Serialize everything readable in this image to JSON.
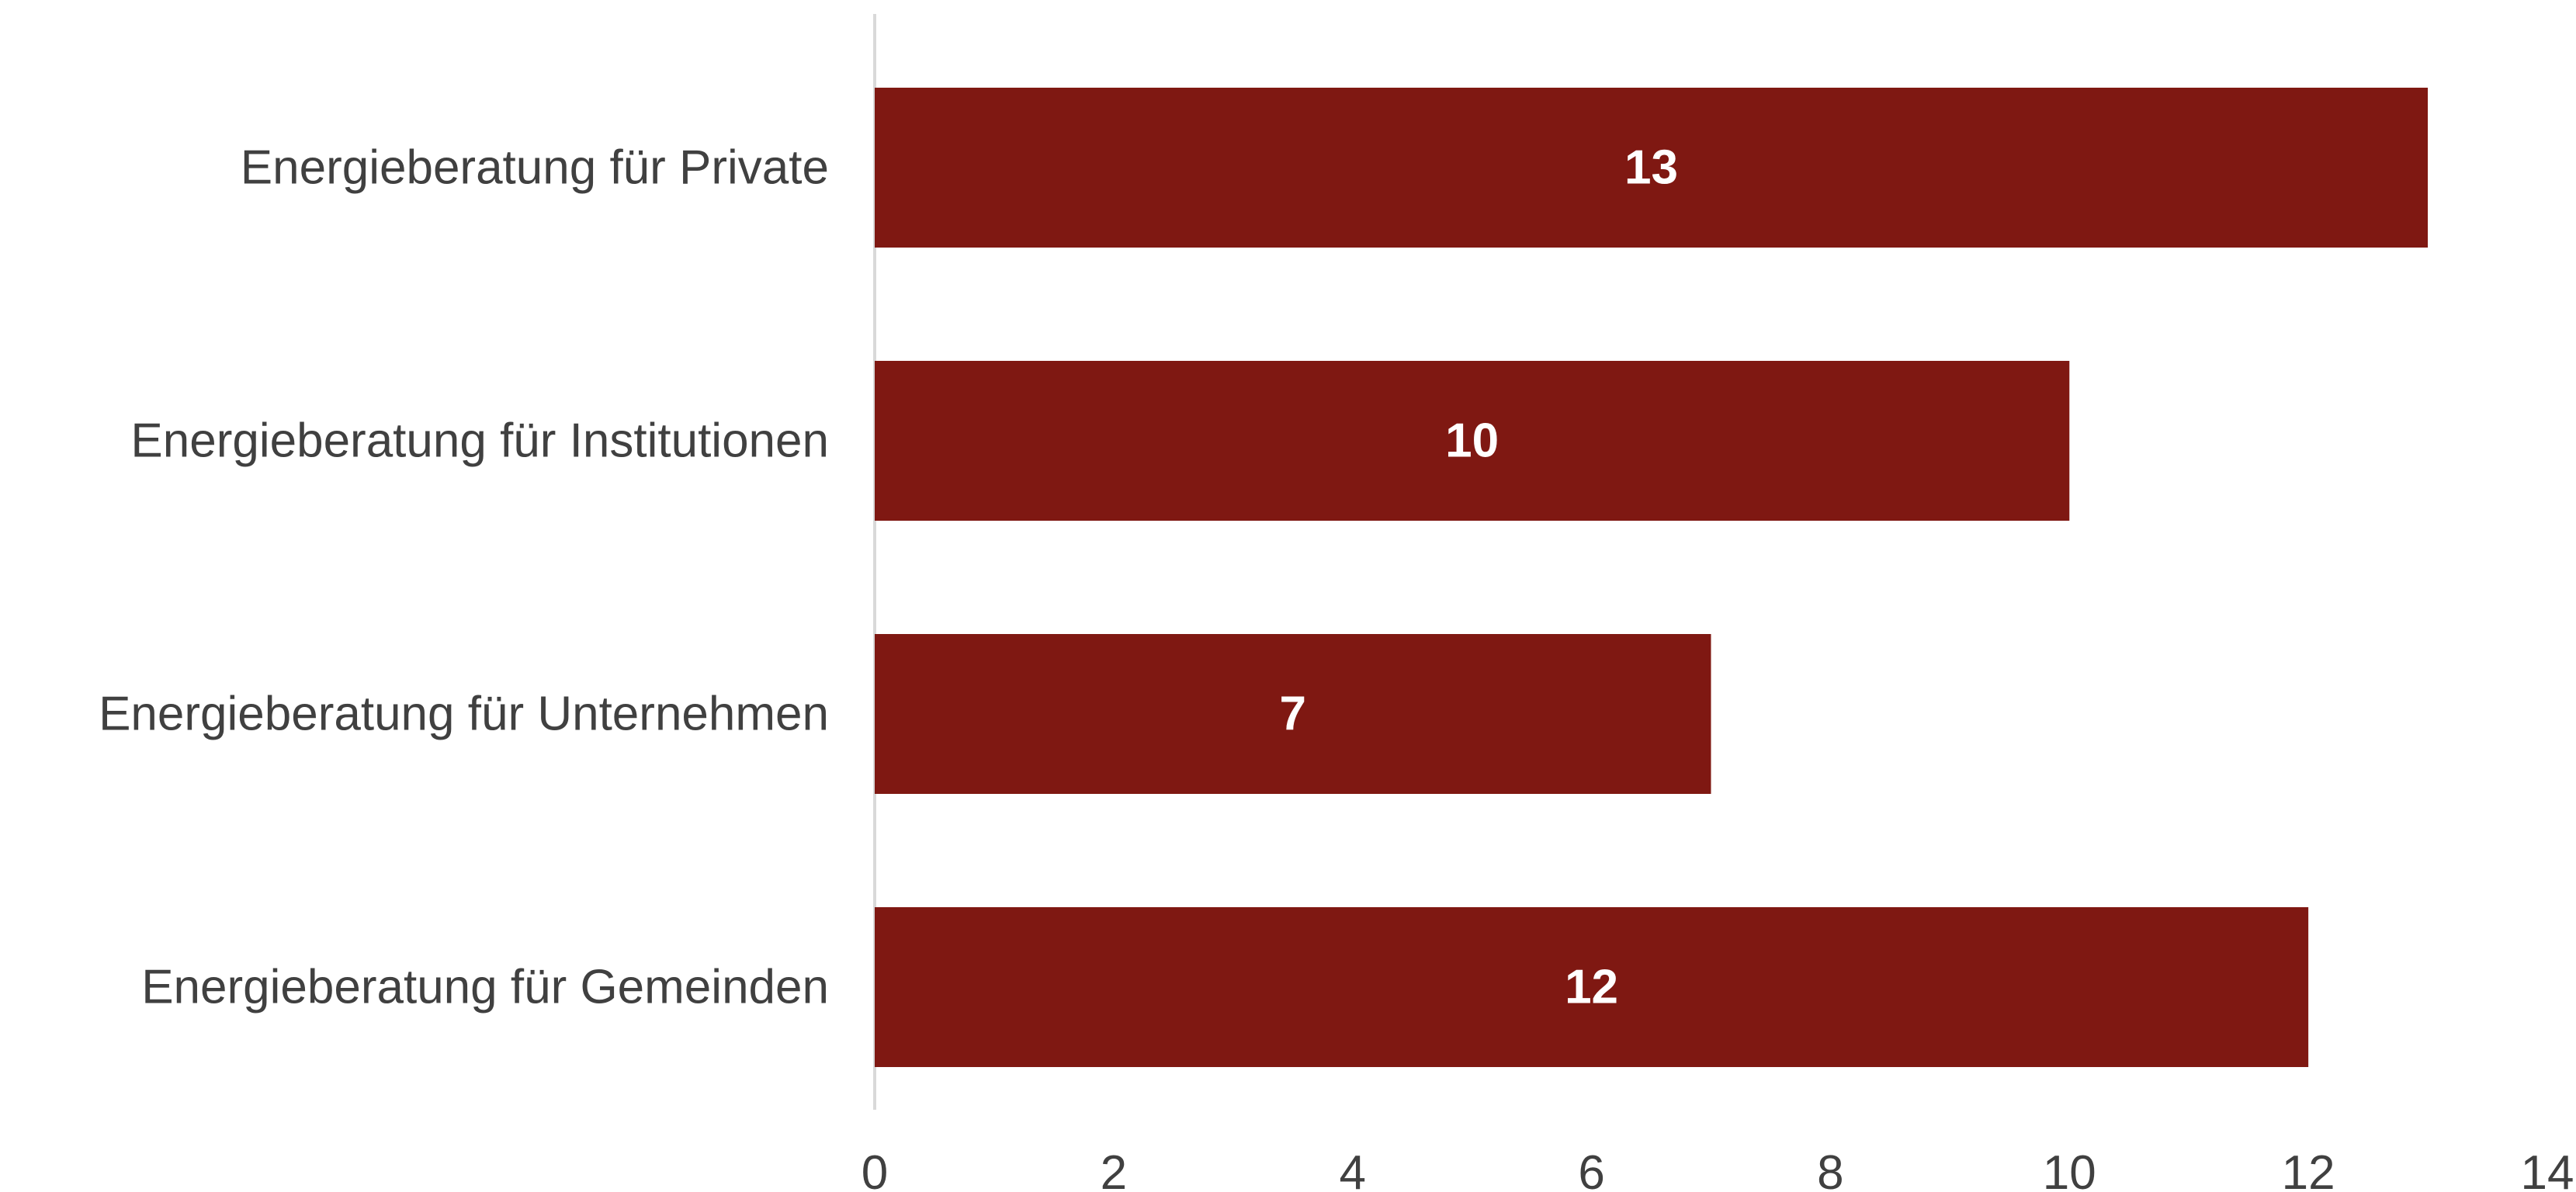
{
  "chart_data": {
    "type": "bar",
    "orientation": "horizontal",
    "categories": [
      "Energieberatung für Private",
      "Energieberatung für Institutionen",
      "Energieberatung für Unternehmen",
      "Energieberatung für Gemeinden"
    ],
    "values": [
      13,
      10,
      7,
      12
    ],
    "data_labels": [
      "13",
      "10",
      "7",
      "12"
    ],
    "xlim": [
      0,
      14
    ],
    "x_ticks": [
      0,
      2,
      4,
      6,
      8,
      10,
      12,
      14
    ],
    "x_tick_labels": [
      "0",
      "2",
      "4",
      "6",
      "8",
      "10",
      "12",
      "14"
    ],
    "grid": false,
    "legend": "none",
    "bar_color": "#7f1812",
    "label_color": "#404040",
    "data_label_color": "#ffffff",
    "axis_color": "#d9d9d9"
  }
}
